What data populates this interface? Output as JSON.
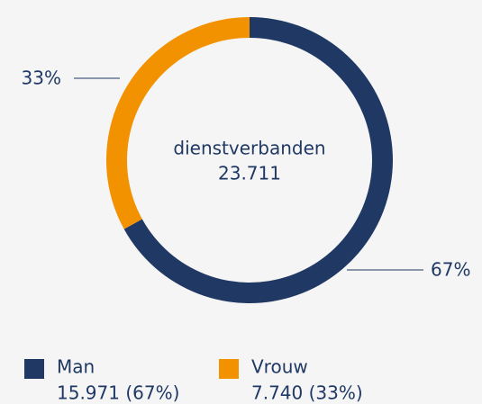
{
  "chart_data": {
    "type": "donut",
    "center_label": "dienstverbanden",
    "center_value": "23.711",
    "categories": [
      "Man",
      "Vrouw"
    ],
    "values": [
      67,
      33
    ],
    "value_labels": [
      "67%",
      "33%"
    ],
    "legend_labels": [
      "15.971 (67%)",
      "7.740 (33%)"
    ],
    "colors": [
      "#1f3864",
      "#f39200"
    ]
  }
}
